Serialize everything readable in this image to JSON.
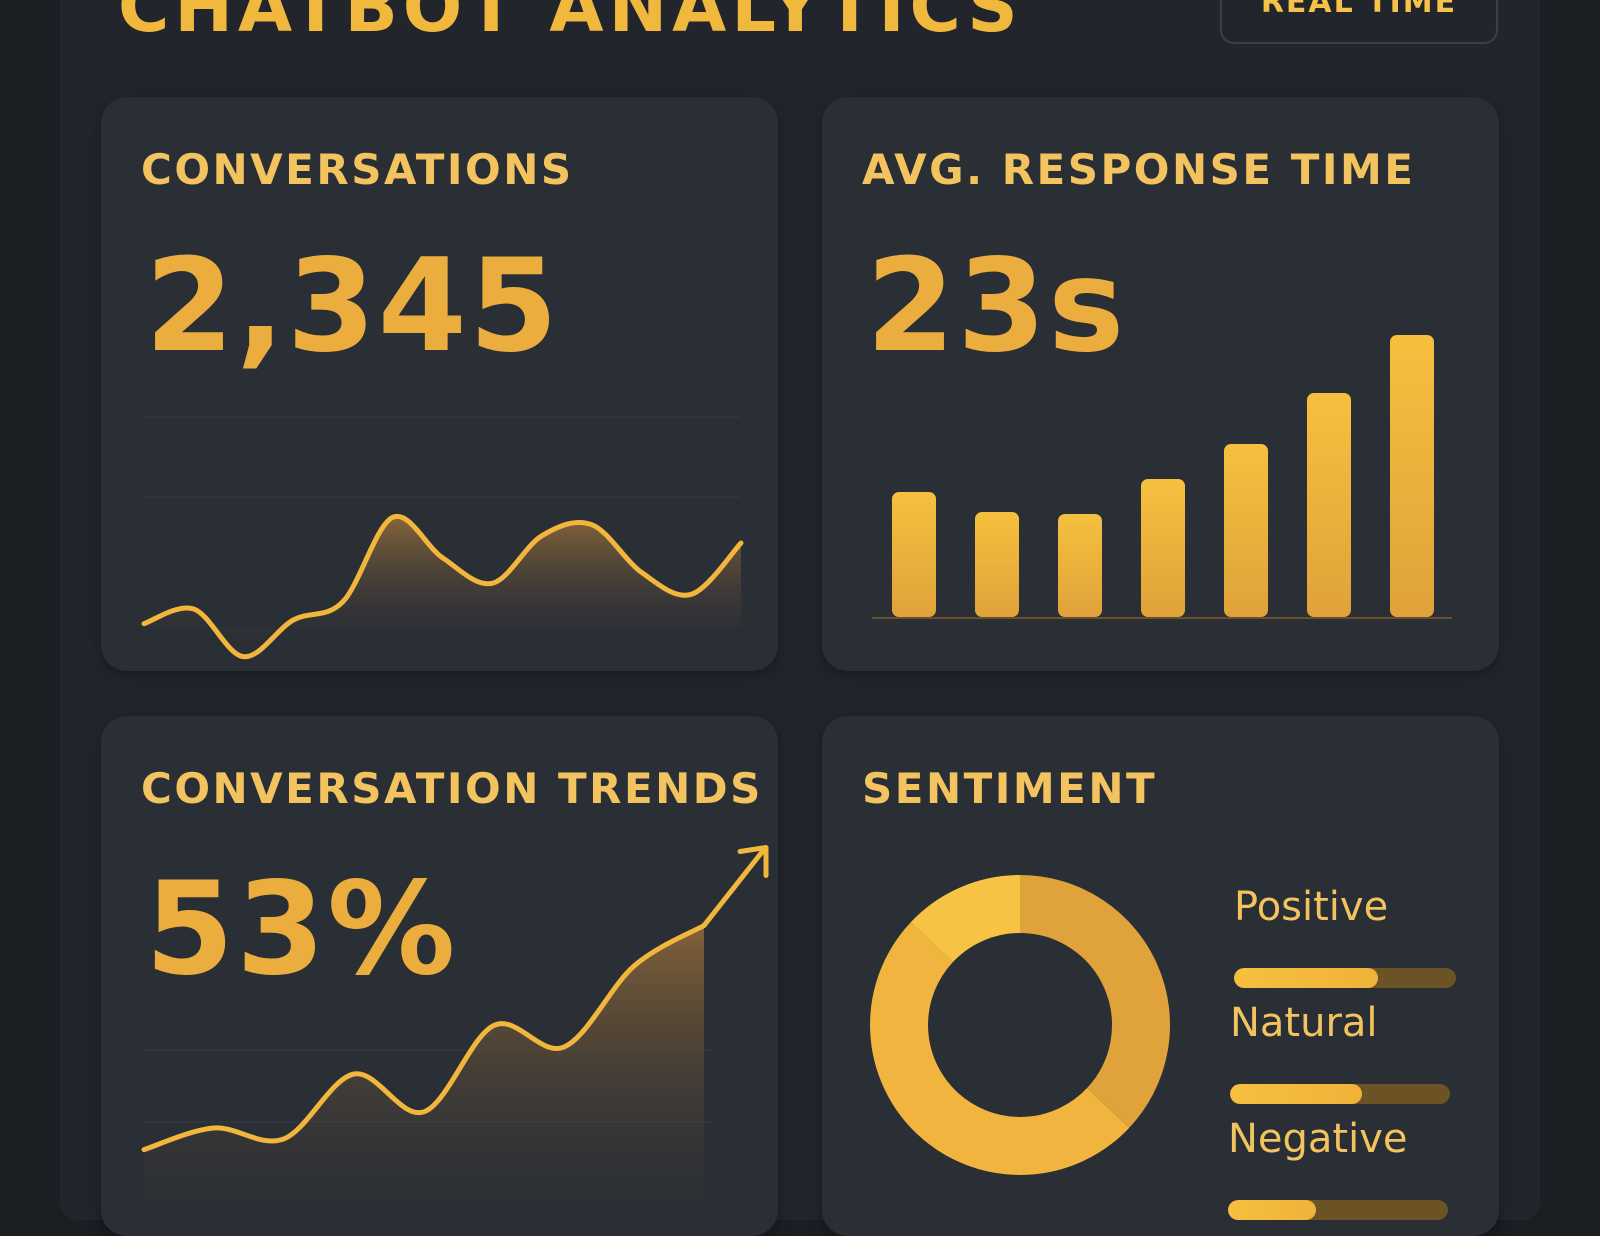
{
  "header": {
    "title": "CHATBOT ANALYTICS",
    "mode_button": "REAL TIME"
  },
  "colors": {
    "accent": "#f0b83d",
    "background": "#1b1e23",
    "card": "#2a2e35"
  },
  "cards": {
    "conversations": {
      "title": "CONVERSATIONS",
      "value": "2,345"
    },
    "response_time": {
      "title": "AVG. RESPONSE TIME",
      "value": "23s"
    },
    "trends": {
      "title": "CONVERSATION TRENDS",
      "value": "53%",
      "arrow_icon": "trend-up-arrow-icon"
    },
    "sentiment": {
      "title": "SENTIMENT",
      "legend": [
        {
          "label": "Positive",
          "level": 0.65
        },
        {
          "label": "Natural",
          "level": 0.6
        },
        {
          "label": "Negative",
          "level": 0.4
        }
      ]
    }
  },
  "chart_data": [
    {
      "id": "conversations",
      "type": "area",
      "x": [
        0,
        1,
        2,
        3,
        4,
        5,
        6,
        7,
        8,
        9,
        10,
        11,
        12
      ],
      "y": [
        20,
        24,
        11,
        21,
        26,
        49,
        38,
        31,
        44,
        47,
        34,
        28,
        42
      ],
      "ylim": [
        0,
        60
      ]
    },
    {
      "id": "response_time",
      "type": "bar",
      "categories": [
        "1",
        "2",
        "3",
        "4",
        "5",
        "6",
        "7"
      ],
      "values": [
        125,
        105,
        103,
        138,
        173,
        224,
        282
      ],
      "ylim": [
        0,
        300
      ]
    },
    {
      "id": "trends",
      "type": "line",
      "x": [
        0,
        1,
        2,
        3,
        4,
        5,
        6,
        7,
        8
      ],
      "y": [
        12,
        20,
        16,
        40,
        26,
        58,
        50,
        80,
        95
      ],
      "ylim": [
        0,
        100
      ]
    },
    {
      "id": "sentiment",
      "type": "pie",
      "labels": [
        "Positive",
        "Natural",
        "Negative"
      ],
      "values": [
        37,
        50,
        13
      ]
    }
  ]
}
